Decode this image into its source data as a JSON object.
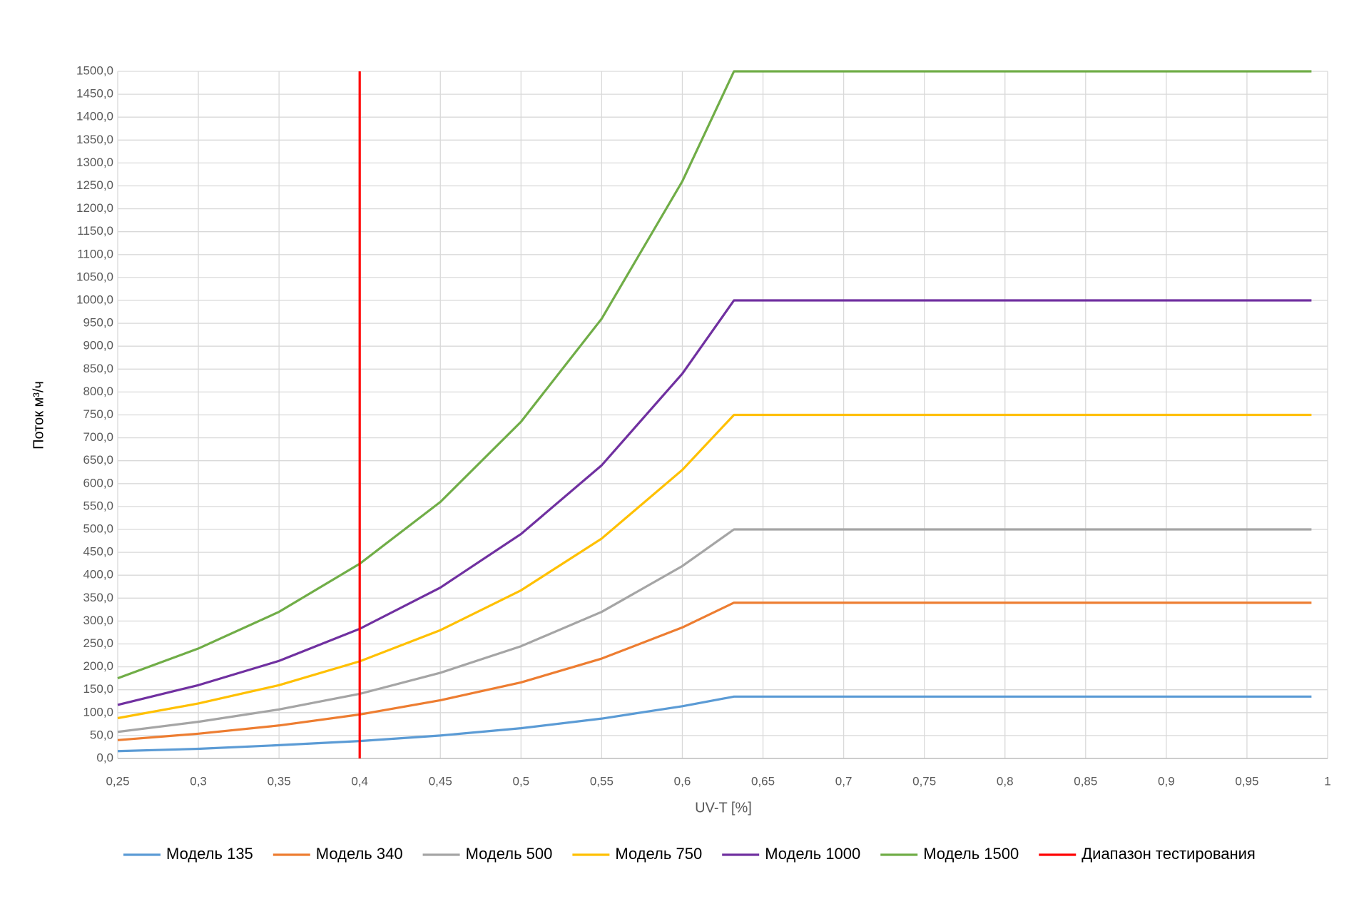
{
  "chart_data": {
    "type": "line",
    "x_label": "UV-T [%]",
    "y_label": "Поток м³/ч",
    "x": [
      0.25,
      0.3,
      0.35,
      0.4,
      0.45,
      0.5,
      0.55,
      0.6,
      0.632,
      0.99
    ],
    "series": [
      {
        "name": "Модель 135",
        "color": "#5b9bd5",
        "values": [
          16,
          21,
          29,
          38,
          50,
          66,
          87,
          114,
          135,
          135
        ]
      },
      {
        "name": "Модель 340",
        "color": "#ed7d31",
        "values": [
          40,
          54,
          72,
          96,
          127,
          166,
          218,
          286,
          340,
          340
        ]
      },
      {
        "name": "Модель 500",
        "color": "#a5a5a5",
        "values": [
          58,
          80,
          107,
          141,
          187,
          245,
          320,
          420,
          500,
          500
        ]
      },
      {
        "name": "Модель 750",
        "color": "#ffc000",
        "values": [
          88,
          120,
          160,
          212,
          280,
          367,
          480,
          630,
          750,
          750
        ]
      },
      {
        "name": "Модель 1000",
        "color": "#7030a0",
        "values": [
          117,
          160,
          213,
          283,
          373,
          490,
          640,
          840,
          1000,
          1000
        ]
      },
      {
        "name": "Модель 1500",
        "color": "#70ad47",
        "values": [
          175,
          240,
          320,
          425,
          560,
          735,
          960,
          1260,
          1500,
          1500
        ]
      },
      {
        "name": "Диапазон тестирования",
        "color": "#ff0000",
        "x": [
          0.4,
          0.4
        ],
        "values": [
          0,
          1500
        ]
      }
    ],
    "xlim": [
      0.25,
      1
    ],
    "ylim": [
      0,
      1500
    ],
    "grid": true,
    "legend": "bottom",
    "xticks": [
      {
        "value": 0.25,
        "label": "0,25"
      },
      {
        "value": 0.3,
        "label": "0,3"
      },
      {
        "value": 0.35,
        "label": "0,35"
      },
      {
        "value": 0.4,
        "label": "0,4"
      },
      {
        "value": 0.45,
        "label": "0,45"
      },
      {
        "value": 0.5,
        "label": "0,5"
      },
      {
        "value": 0.55,
        "label": "0,55"
      },
      {
        "value": 0.6,
        "label": "0,6"
      },
      {
        "value": 0.65,
        "label": "0,65"
      },
      {
        "value": 0.7,
        "label": "0,7"
      },
      {
        "value": 0.75,
        "label": "0,75"
      },
      {
        "value": 0.8,
        "label": "0,8"
      },
      {
        "value": 0.85,
        "label": "0,85"
      },
      {
        "value": 0.9,
        "label": "0,9"
      },
      {
        "value": 0.95,
        "label": "0,95"
      },
      1
    ],
    "yticks": [
      {
        "value": 0,
        "label": "0,0"
      },
      {
        "value": 50,
        "label": "50,0"
      },
      {
        "value": 100,
        "label": "100,0"
      },
      {
        "value": 150,
        "label": "150,0"
      },
      {
        "value": 200,
        "label": "200,0"
      },
      {
        "value": 250,
        "label": "250,0"
      },
      {
        "value": 300,
        "label": "300,0"
      },
      {
        "value": 350,
        "label": "350,0"
      },
      {
        "value": 400,
        "label": "400,0"
      },
      {
        "value": 450,
        "label": "450,0"
      },
      {
        "value": 500,
        "label": "500,0"
      },
      {
        "value": 550,
        "label": "550,0"
      },
      {
        "value": 600,
        "label": "600,0"
      },
      {
        "value": 650,
        "label": "650,0"
      },
      {
        "value": 700,
        "label": "700,0"
      },
      {
        "value": 750,
        "label": "750,0"
      },
      {
        "value": 800,
        "label": "800,0"
      },
      {
        "value": 850,
        "label": "850,0"
      },
      {
        "value": 900,
        "label": "900,0"
      },
      {
        "value": 950,
        "label": "950,0"
      },
      {
        "value": 1000,
        "label": "1000,0"
      },
      {
        "value": 1050,
        "label": "1050,0"
      },
      {
        "value": 1100,
        "label": "1100,0"
      },
      {
        "value": 1150,
        "label": "1150,0"
      },
      {
        "value": 1200,
        "label": "1200,0"
      },
      {
        "value": 1250,
        "label": "1250,0"
      },
      {
        "value": 1300,
        "label": "1300,0"
      },
      {
        "value": 1350,
        "label": "1350,0"
      },
      {
        "value": 1400,
        "label": "1400,0"
      },
      {
        "value": 1450,
        "label": "1450,0"
      },
      {
        "value": 1500,
        "label": "1500,0"
      }
    ]
  }
}
